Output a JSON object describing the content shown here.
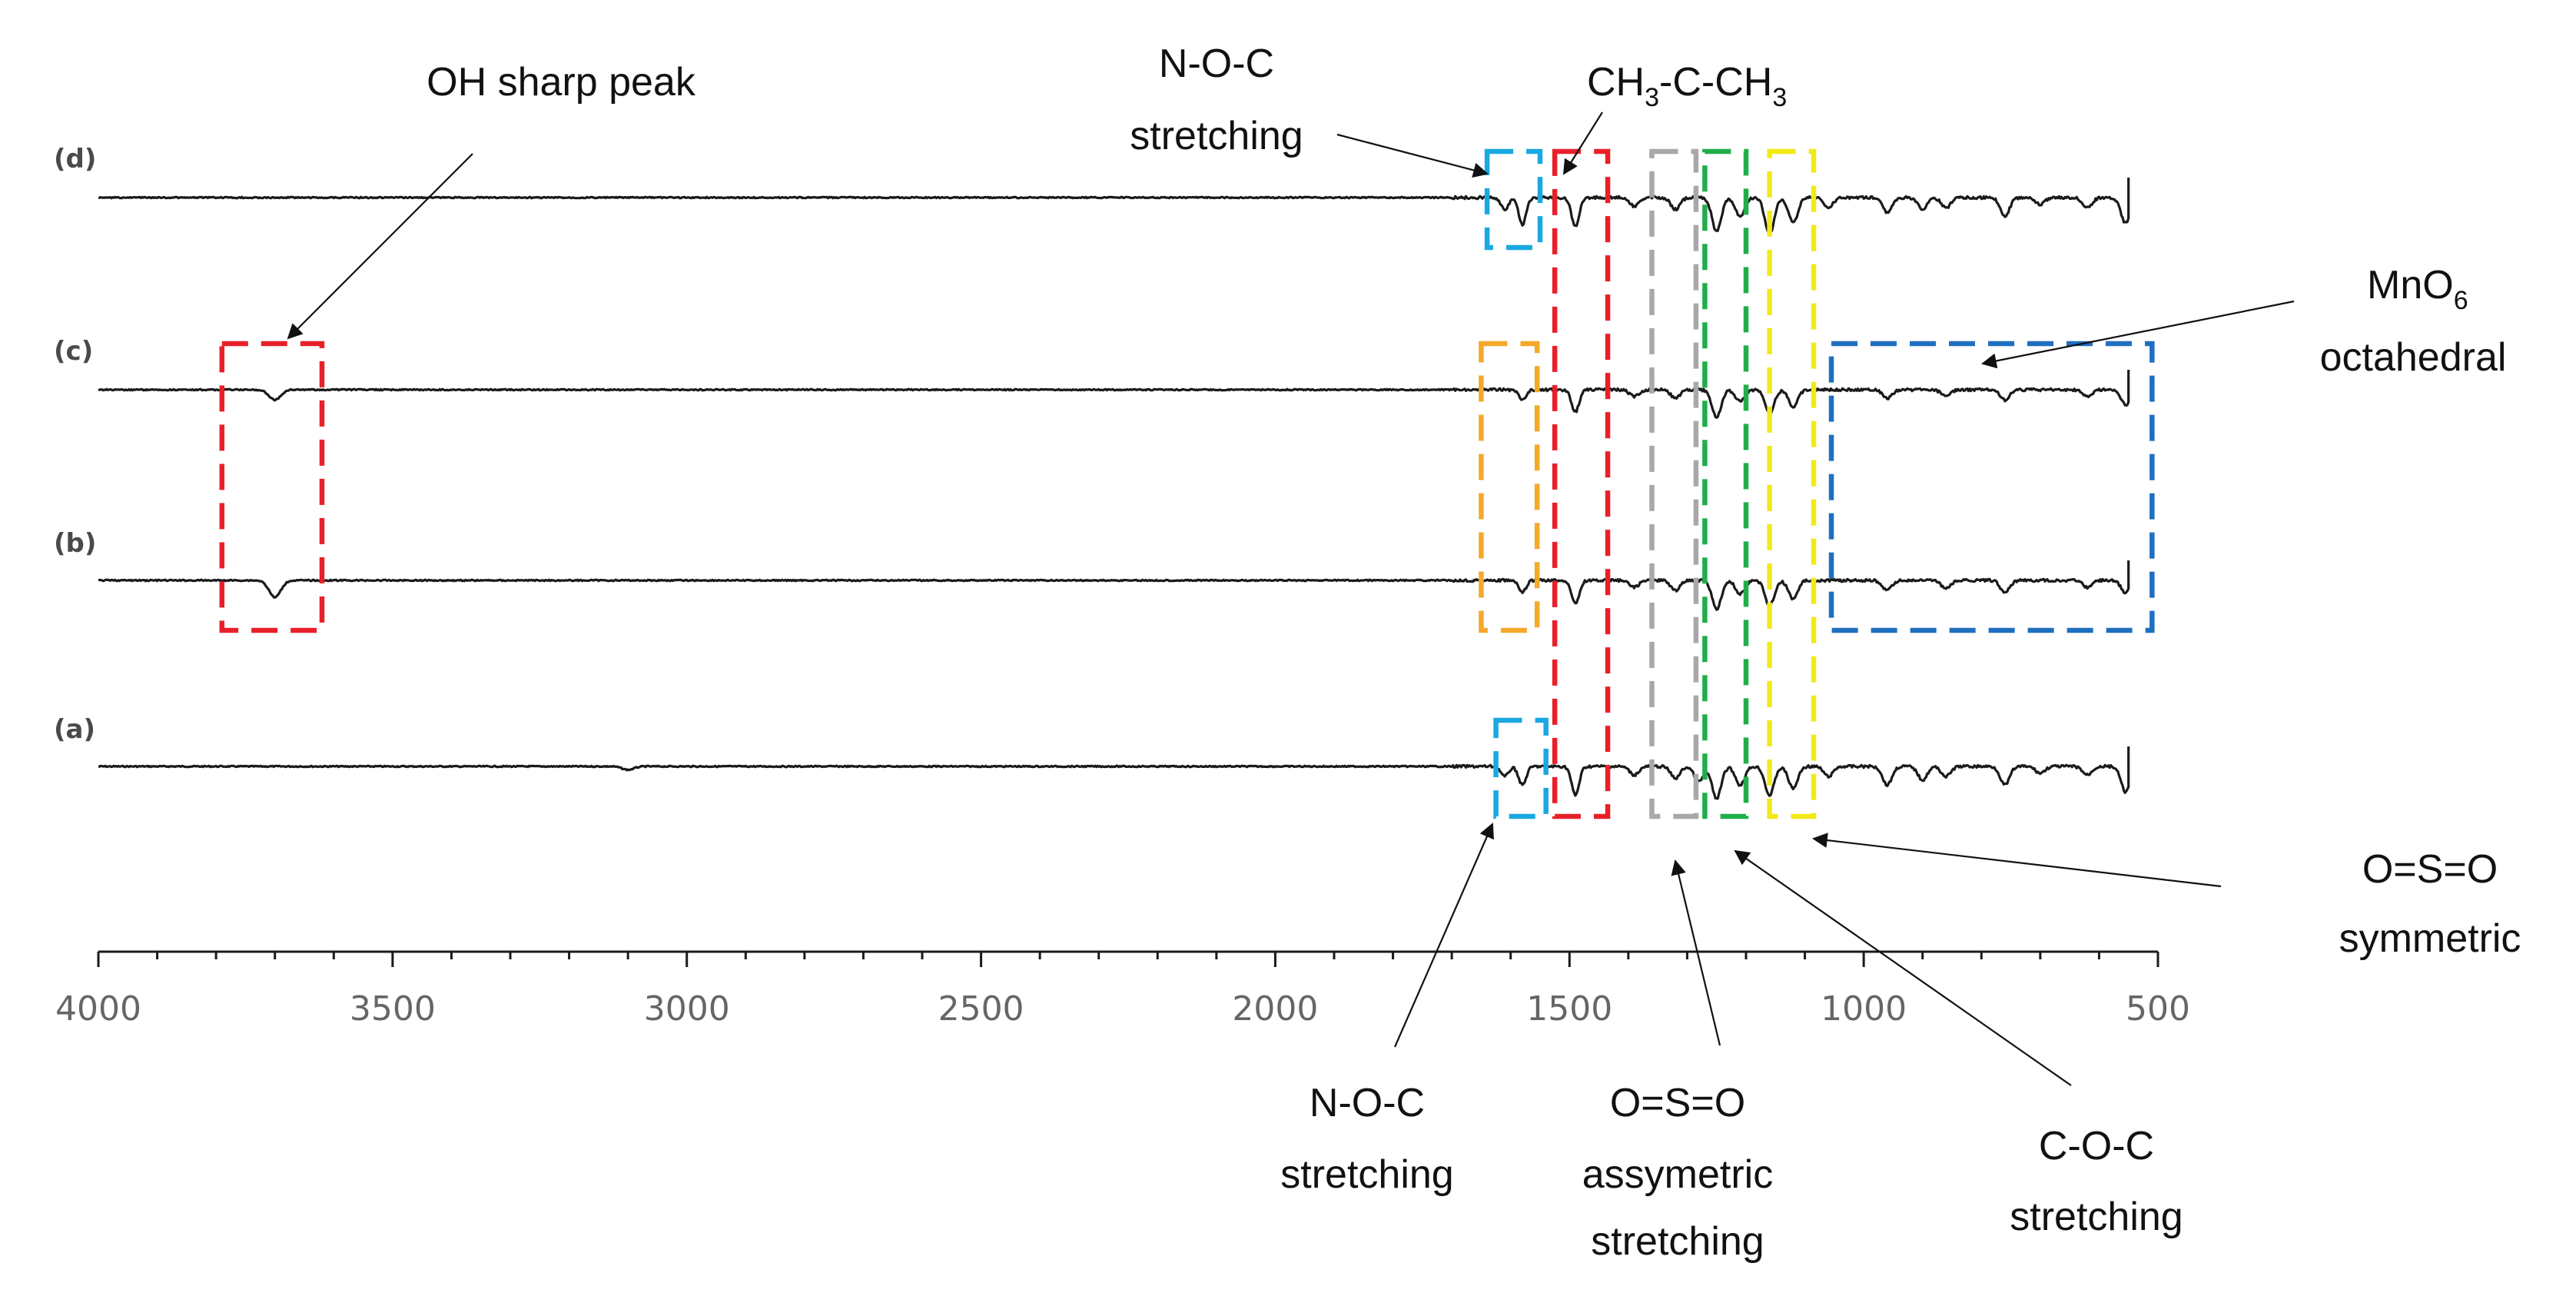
{
  "chart_data": {
    "type": "line",
    "title": "",
    "xlabel": "",
    "ylabel": "",
    "xlim": [
      4000,
      500
    ],
    "x_direction": "decreasing",
    "x_ticks": [
      "4000",
      "3500",
      "3000",
      "2500",
      "2000",
      "1500",
      "1000",
      "500"
    ],
    "y_ticks_shown": false,
    "grid": false,
    "x_start": 4000,
    "x_end": 550,
    "dip_widths_note": "Peak positions in cm-1; depth in relative units",
    "series": [
      {
        "name": "(a)",
        "peaks": [
          {
            "x": 3100,
            "depth": 0.1
          },
          {
            "x": 1580,
            "depth": 0.55
          },
          {
            "x": 1610,
            "depth": 0.3
          },
          {
            "x": 1490,
            "depth": 0.85
          },
          {
            "x": 1390,
            "depth": 0.25
          },
          {
            "x": 1320,
            "depth": 0.35
          },
          {
            "x": 1280,
            "depth": 0.45
          },
          {
            "x": 1250,
            "depth": 0.95
          },
          {
            "x": 1210,
            "depth": 0.55
          },
          {
            "x": 1160,
            "depth": 0.85
          },
          {
            "x": 1120,
            "depth": 0.65
          },
          {
            "x": 1060,
            "depth": 0.3
          },
          {
            "x": 960,
            "depth": 0.55
          },
          {
            "x": 900,
            "depth": 0.4
          },
          {
            "x": 860,
            "depth": 0.3
          },
          {
            "x": 760,
            "depth": 0.55
          },
          {
            "x": 700,
            "depth": 0.2
          },
          {
            "x": 620,
            "depth": 0.25
          },
          {
            "x": 555,
            "depth": 0.75
          }
        ]
      },
      {
        "name": "(b)",
        "peaks": [
          {
            "x": 3700,
            "depth": 0.5
          },
          {
            "x": 1580,
            "depth": 0.35
          },
          {
            "x": 1490,
            "depth": 0.7
          },
          {
            "x": 1390,
            "depth": 0.2
          },
          {
            "x": 1320,
            "depth": 0.3
          },
          {
            "x": 1250,
            "depth": 0.85
          },
          {
            "x": 1210,
            "depth": 0.4
          },
          {
            "x": 1160,
            "depth": 0.75
          },
          {
            "x": 1120,
            "depth": 0.55
          },
          {
            "x": 960,
            "depth": 0.3
          },
          {
            "x": 860,
            "depth": 0.25
          },
          {
            "x": 760,
            "depth": 0.35
          },
          {
            "x": 620,
            "depth": 0.2
          },
          {
            "x": 555,
            "depth": 0.35
          }
        ]
      },
      {
        "name": "(c)",
        "peaks": [
          {
            "x": 3700,
            "depth": 0.3
          },
          {
            "x": 1580,
            "depth": 0.3
          },
          {
            "x": 1490,
            "depth": 0.65
          },
          {
            "x": 1390,
            "depth": 0.2
          },
          {
            "x": 1320,
            "depth": 0.25
          },
          {
            "x": 1250,
            "depth": 0.8
          },
          {
            "x": 1210,
            "depth": 0.35
          },
          {
            "x": 1160,
            "depth": 0.7
          },
          {
            "x": 1120,
            "depth": 0.5
          },
          {
            "x": 960,
            "depth": 0.25
          },
          {
            "x": 860,
            "depth": 0.2
          },
          {
            "x": 760,
            "depth": 0.3
          },
          {
            "x": 620,
            "depth": 0.2
          },
          {
            "x": 555,
            "depth": 0.45
          }
        ]
      },
      {
        "name": "(d)",
        "peaks": [
          {
            "x": 1610,
            "depth": 0.35
          },
          {
            "x": 1580,
            "depth": 0.8
          },
          {
            "x": 1490,
            "depth": 0.85
          },
          {
            "x": 1390,
            "depth": 0.25
          },
          {
            "x": 1320,
            "depth": 0.35
          },
          {
            "x": 1250,
            "depth": 1.0
          },
          {
            "x": 1210,
            "depth": 0.55
          },
          {
            "x": 1160,
            "depth": 1.1
          },
          {
            "x": 1120,
            "depth": 0.75
          },
          {
            "x": 1060,
            "depth": 0.3
          },
          {
            "x": 960,
            "depth": 0.45
          },
          {
            "x": 900,
            "depth": 0.35
          },
          {
            "x": 860,
            "depth": 0.3
          },
          {
            "x": 760,
            "depth": 0.55
          },
          {
            "x": 700,
            "depth": 0.2
          },
          {
            "x": 620,
            "depth": 0.3
          },
          {
            "x": 555,
            "depth": 0.75
          }
        ]
      }
    ],
    "highlight_regions": [
      {
        "name": "oh-box",
        "color": "#e8202a",
        "x_from": 3790,
        "x_to": 3620,
        "series": [
          "(b)",
          "(c)"
        ]
      },
      {
        "name": "noc-top-box",
        "color": "#1aa8e0",
        "x_from": 1640,
        "x_to": 1550,
        "series": [
          "(d)"
        ]
      },
      {
        "name": "noc-bottom-box",
        "color": "#1aa8e0",
        "x_from": 1625,
        "x_to": 1540,
        "series": [
          "(a)"
        ]
      },
      {
        "name": "orange-box",
        "color": "#f4a92a",
        "x_from": 1650,
        "x_to": 1555,
        "series": [
          "(b)",
          "(c)"
        ]
      },
      {
        "name": "ch3-box",
        "color": "#e8202a",
        "x_from": 1525,
        "x_to": 1435,
        "series": [
          "(a)",
          "(b)",
          "(c)",
          "(d)"
        ]
      },
      {
        "name": "oso-asym-box",
        "color": "#a8a8a8",
        "x_from": 1360,
        "x_to": 1285,
        "series": [
          "(a)",
          "(b)",
          "(c)",
          "(d)"
        ]
      },
      {
        "name": "coc-box",
        "color": "#1fae4a",
        "x_from": 1270,
        "x_to": 1200,
        "series": [
          "(a)",
          "(b)",
          "(c)",
          "(d)"
        ]
      },
      {
        "name": "oso-sym-box",
        "color": "#f2ea18",
        "x_from": 1160,
        "x_to": 1085,
        "series": [
          "(a)",
          "(b)",
          "(c)",
          "(d)"
        ]
      },
      {
        "name": "mno6-box",
        "color": "#1f6fc0",
        "x_from": 1055,
        "x_to": 510,
        "series": [
          "(b)",
          "(c)"
        ]
      }
    ],
    "annotations": {
      "oh": "OH sharp peak",
      "noc_top_1": "N-O-C",
      "noc_top_2": "stretching",
      "ch3_a": "CH",
      "ch3_sub1": "3",
      "ch3_b": "-C-CH",
      "ch3_sub2": "3",
      "mno6_a": "MnO",
      "mno6_sub": "6",
      "mno6_2": "octahedral",
      "oso_sym_1": "O=S=O",
      "oso_sym_2": "symmetric",
      "noc_bot_1": "N-O-C",
      "noc_bot_2": "stretching",
      "oso_asym_1": "O=S=O",
      "oso_asym_2": "assymetric",
      "oso_asym_3": "stretching",
      "coc_1": "C-O-C",
      "coc_2": "stretching"
    }
  }
}
